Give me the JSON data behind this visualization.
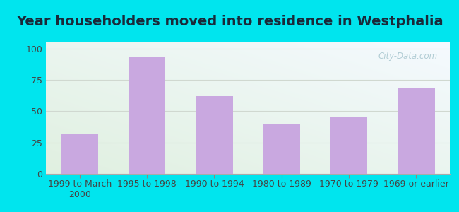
{
  "title": "Year householders moved into residence in Westphalia",
  "categories": [
    "1999 to March\n2000",
    "1995 to 1998",
    "1990 to 1994",
    "1980 to 1989",
    "1970 to 1979",
    "1969 or earlier"
  ],
  "values": [
    32,
    93,
    62,
    40,
    45,
    69
  ],
  "bar_color": "#c9a8e0",
  "yticks": [
    0,
    25,
    50,
    75,
    100
  ],
  "ylim": [
    0,
    105
  ],
  "background_outer": "#00e5ee",
  "background_inner_top_right": "#f5faff",
  "background_inner_bottom_left": "#e0f0e0",
  "grid_color": "#d0d8d0",
  "title_fontsize": 14,
  "tick_fontsize": 9,
  "watermark_text": "City-Data.com",
  "watermark_color": "#aac8d0",
  "title_color": "#1a2a3a"
}
